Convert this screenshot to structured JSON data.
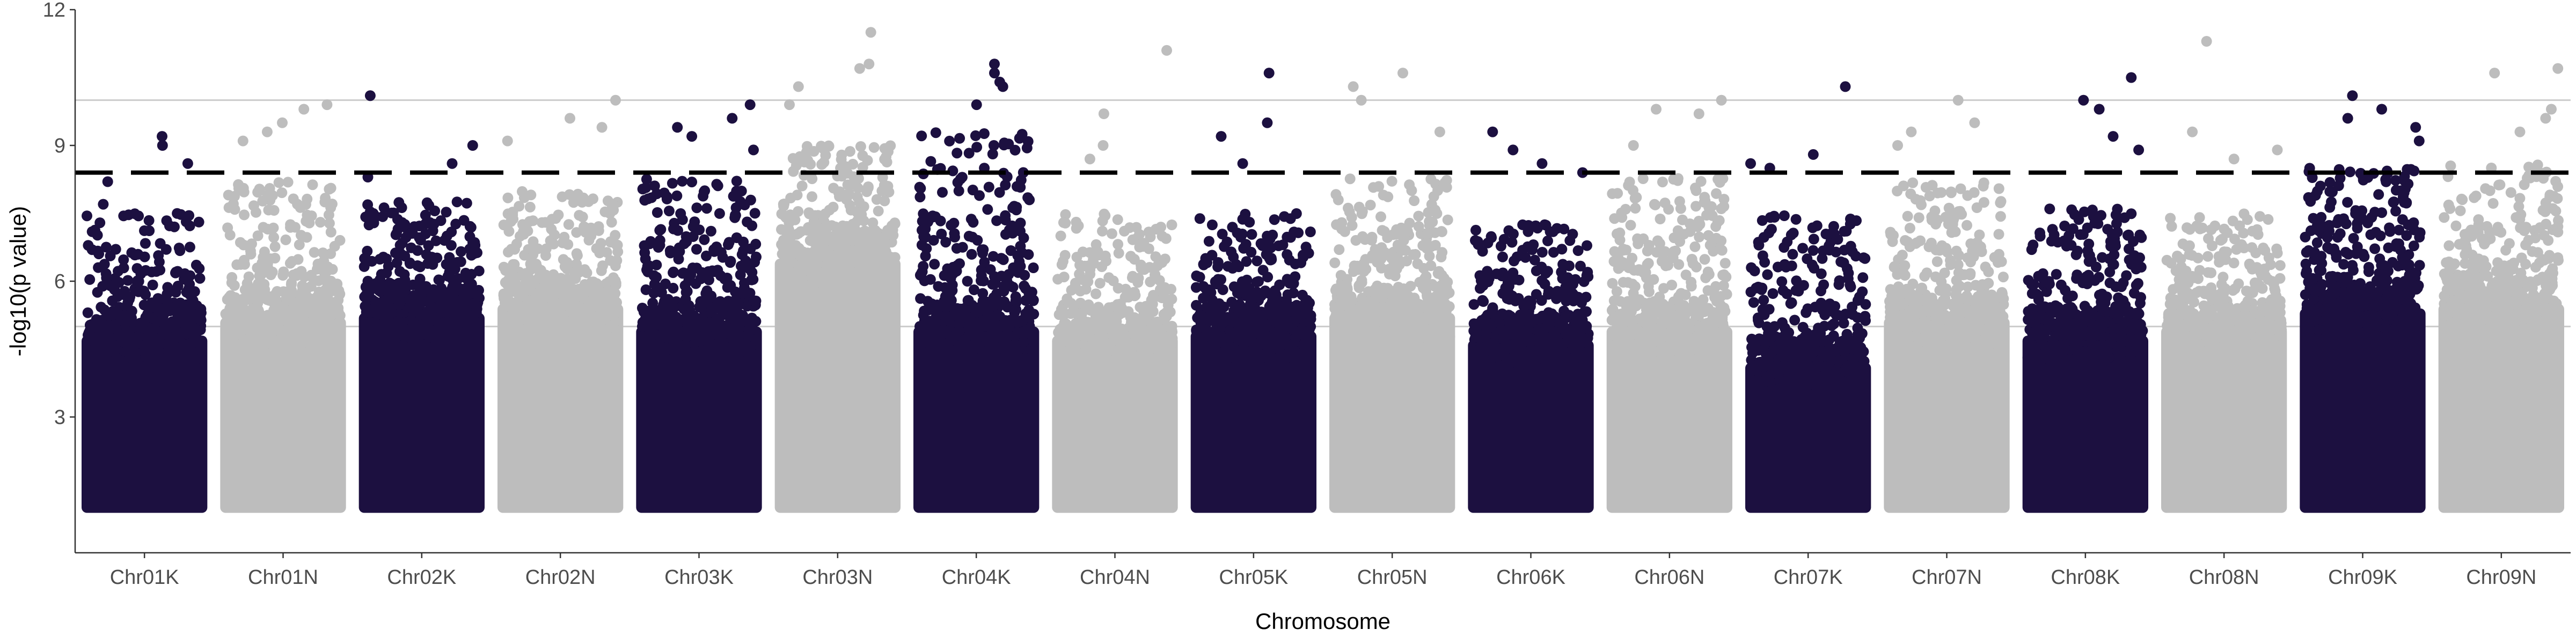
{
  "chart_data": {
    "type": "scatter",
    "subtype": "manhattan",
    "title": "",
    "xlabel": "Chromosome",
    "ylabel": "-log10(p value)",
    "categories": [
      "Chr01K",
      "Chr01N",
      "Chr02K",
      "Chr02N",
      "Chr03K",
      "Chr03N",
      "Chr04K",
      "Chr04N",
      "Chr05K",
      "Chr05N",
      "Chr06K",
      "Chr06N",
      "Chr07K",
      "Chr07N",
      "Chr08K",
      "Chr08N",
      "Chr09K",
      "Chr09N"
    ],
    "ylim": [
      0,
      12
    ],
    "yticks": [
      3,
      6,
      9,
      12
    ],
    "grid": false,
    "legend": "none",
    "colors": {
      "dark": "#1c1040",
      "light": "#bdbdbd",
      "threshold": "#000000",
      "ref_line": "#cccccc"
    },
    "point_color_pattern": [
      "dark",
      "light",
      "dark",
      "light",
      "dark",
      "light",
      "dark",
      "light",
      "dark",
      "light",
      "dark",
      "light",
      "dark",
      "light",
      "dark",
      "light",
      "dark",
      "light"
    ],
    "reference_lines": [
      {
        "y": 10.0,
        "style": "solid",
        "color": "#cccccc"
      },
      {
        "y": 5.0,
        "style": "solid",
        "color": "#cccccc"
      },
      {
        "y": 8.4,
        "style": "dashed",
        "color": "#000000"
      }
    ],
    "points_min_y": 1.0,
    "chromosomes": [
      {
        "name": "Chr01K",
        "dense_top": 4.8,
        "cap": 7.5,
        "top_hits": [
          9.2,
          9.0,
          8.6,
          8.2,
          7.7
        ]
      },
      {
        "name": "Chr01N",
        "dense_top": 5.2,
        "cap": 8.2,
        "top_hits": [
          9.9,
          9.8,
          9.5,
          9.3,
          9.1
        ]
      },
      {
        "name": "Chr02K",
        "dense_top": 5.3,
        "cap": 7.8,
        "top_hits": [
          10.1,
          9.0,
          8.6,
          8.3
        ]
      },
      {
        "name": "Chr02N",
        "dense_top": 5.5,
        "cap": 8.0,
        "top_hits": [
          10.0,
          9.6,
          9.4,
          9.1
        ]
      },
      {
        "name": "Chr03K",
        "dense_top": 5.0,
        "cap": 8.3,
        "top_hits": [
          9.9,
          9.6,
          9.4,
          9.2,
          8.9
        ]
      },
      {
        "name": "Chr03N",
        "dense_top": 6.5,
        "cap": 9.0,
        "top_hits": [
          11.5,
          10.8,
          10.7,
          10.3,
          9.9
        ]
      },
      {
        "name": "Chr04K",
        "dense_top": 5.0,
        "cap": 9.3,
        "top_hits": [
          10.8,
          10.6,
          10.4,
          10.3,
          9.9
        ]
      },
      {
        "name": "Chr04N",
        "dense_top": 4.8,
        "cap": 7.5,
        "top_hits": [
          11.1,
          9.7,
          9.0,
          8.7
        ]
      },
      {
        "name": "Chr05K",
        "dense_top": 4.9,
        "cap": 7.5,
        "top_hits": [
          10.6,
          9.5,
          9.2,
          8.6
        ]
      },
      {
        "name": "Chr05N",
        "dense_top": 5.3,
        "cap": 8.3,
        "top_hits": [
          10.6,
          10.3,
          10.0,
          9.3
        ]
      },
      {
        "name": "Chr06K",
        "dense_top": 4.7,
        "cap": 7.3,
        "top_hits": [
          9.3,
          8.9,
          8.6,
          8.4
        ]
      },
      {
        "name": "Chr06N",
        "dense_top": 5.0,
        "cap": 8.3,
        "top_hits": [
          10.0,
          9.8,
          9.7,
          9.0
        ]
      },
      {
        "name": "Chr07K",
        "dense_top": 4.2,
        "cap": 7.5,
        "top_hits": [
          10.3,
          8.8,
          8.6,
          8.5
        ]
      },
      {
        "name": "Chr07N",
        "dense_top": 5.2,
        "cap": 8.2,
        "top_hits": [
          10.0,
          9.5,
          9.3,
          9.0
        ]
      },
      {
        "name": "Chr08K",
        "dense_top": 4.8,
        "cap": 7.6,
        "top_hits": [
          10.5,
          10.0,
          9.8,
          9.2,
          8.9
        ]
      },
      {
        "name": "Chr08N",
        "dense_top": 5.0,
        "cap": 7.5,
        "top_hits": [
          11.3,
          9.3,
          8.9,
          8.7
        ]
      },
      {
        "name": "Chr09K",
        "dense_top": 5.4,
        "cap": 8.5,
        "top_hits": [
          10.1,
          9.8,
          9.6,
          9.4,
          9.1
        ]
      },
      {
        "name": "Chr09N",
        "dense_top": 5.5,
        "cap": 8.6,
        "top_hits": [
          10.7,
          10.6,
          9.8,
          9.6,
          9.3
        ]
      }
    ]
  }
}
